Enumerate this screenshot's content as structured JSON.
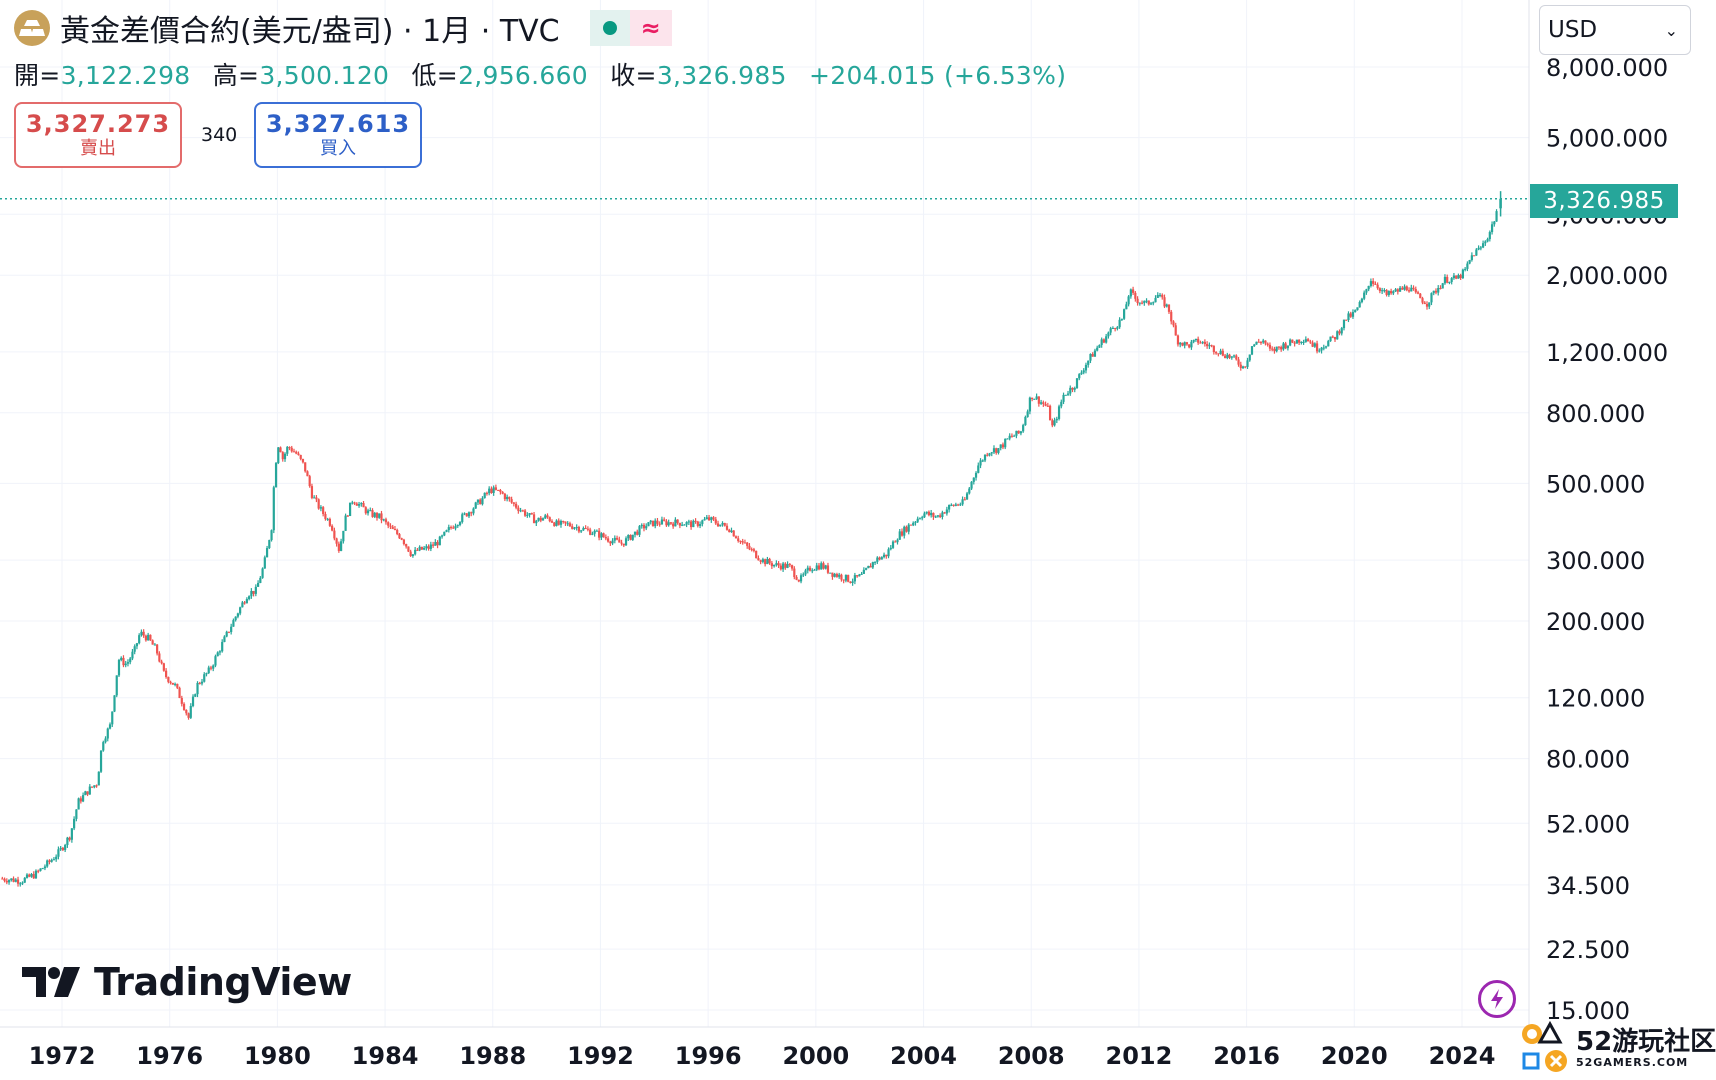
{
  "header": {
    "title": "黃金差價合約(美元/盎司) · 1月 · TVC",
    "delay_symbol": "≈"
  },
  "ohlc": {
    "open_label": "開=",
    "open": "3,122.298",
    "high_label": "高=",
    "high": "3,500.120",
    "low_label": "低=",
    "low": "2,956.660",
    "close_label": "收=",
    "close": "3,326.985",
    "change": "+204.015 (+6.53%)"
  },
  "quote": {
    "sell_price": "3,327.273",
    "sell_label": "賣出",
    "spread": "340",
    "buy_price": "3,327.613",
    "buy_label": "買入"
  },
  "currency": {
    "selected": "USD"
  },
  "last_price_label": "3,326.985",
  "branding": {
    "logo_text": "TradingView"
  },
  "watermark": {
    "title": "52游玩社区",
    "subtitle": "52GAMERS.COM"
  },
  "colors": {
    "up": "#26a69a",
    "down": "#ef5350",
    "price_line": "#26a69a",
    "accent_purple": "#9c27b0"
  },
  "icons": {
    "symbol": "gold-bars-icon",
    "status": "market-open-dot-icon",
    "delay": "delay-approx-icon",
    "bolt": "lightning-icon"
  },
  "chart_data": {
    "type": "line",
    "title": "黃金差價合約(美元/盎司)",
    "interval": "1月",
    "y_scale": "log",
    "y_ticks": [
      "8,000.000",
      "5,000.000",
      "3,000.000",
      "2,000.000",
      "1,200.000",
      "800.000",
      "500.000",
      "300.000",
      "200.000",
      "120.000",
      "80.000",
      "52.000",
      "34.500",
      "22.500",
      "15.000"
    ],
    "y_tick_values": [
      8000,
      5000,
      3000,
      2000,
      1200,
      800,
      500,
      300,
      200,
      120,
      80,
      52,
      34.5,
      22.5,
      15
    ],
    "x_ticks": [
      "1972",
      "1976",
      "1980",
      "1984",
      "1988",
      "1992",
      "1996",
      "2000",
      "2004",
      "2008",
      "2012",
      "2016",
      "2020",
      "2024"
    ],
    "x_tick_values": [
      1972,
      1976,
      1980,
      1984,
      1988,
      1992,
      1996,
      2000,
      2004,
      2008,
      2012,
      2016,
      2020,
      2024
    ],
    "ylim": [
      14,
      9000
    ],
    "xlim": [
      1969.7,
      2026.3
    ],
    "last_value": 3326.985,
    "series": [
      {
        "x": [
          1969.7,
          1970.5,
          1971.0,
          1971.5,
          1971.9,
          1972.3,
          1972.6,
          1973.0,
          1973.3,
          1973.5,
          1973.8,
          1974.1,
          1974.4,
          1974.7,
          1974.9,
          1975.2,
          1975.5,
          1975.8,
          1976.2,
          1976.5,
          1976.7,
          1977.0,
          1977.5,
          1978.0,
          1978.5,
          1978.9,
          1979.2,
          1979.5,
          1979.8,
          1979.9,
          1980.05,
          1980.2,
          1980.4,
          1980.7,
          1981.0,
          1981.3,
          1981.6,
          1982.0,
          1982.3,
          1982.5,
          1982.8,
          1983.1,
          1983.4,
          1983.8,
          1984.2,
          1984.6,
          1985.0,
          1985.2,
          1985.6,
          1986.0,
          1986.4,
          1986.8,
          1987.2,
          1987.6,
          1987.9,
          1988.3,
          1988.7,
          1989.2,
          1989.6,
          1990.0,
          1990.4,
          1990.8,
          1991.3,
          1991.8,
          1992.3,
          1992.8,
          1993.2,
          1993.6,
          1994.0,
          1994.5,
          1995.0,
          1995.5,
          1996.0,
          1996.3,
          1996.8,
          1997.2,
          1997.6,
          1998.0,
          1998.5,
          1999.0,
          1999.4,
          1999.8,
          2000.2,
          2000.6,
          2001.0,
          2001.3,
          2001.7,
          2002.2,
          2002.6,
          2003.0,
          2003.5,
          2004.0,
          2004.5,
          2005.0,
          2005.5,
          2006.0,
          2006.4,
          2006.8,
          2007.2,
          2007.6,
          2008.0,
          2008.2,
          2008.6,
          2008.8,
          2009.2,
          2009.6,
          2010.0,
          2010.5,
          2011.0,
          2011.4,
          2011.65,
          2011.9,
          2012.3,
          2012.7,
          2013.1,
          2013.4,
          2013.8,
          2014.2,
          2014.6,
          2015.0,
          2015.5,
          2015.9,
          2016.2,
          2016.6,
          2016.9,
          2017.3,
          2017.7,
          2018.2,
          2018.6,
          2018.9,
          2019.3,
          2019.7,
          2020.0,
          2020.3,
          2020.6,
          2020.9,
          2021.2,
          2021.6,
          2022.0,
          2022.3,
          2022.7,
          2023.0,
          2023.4,
          2023.8,
          2024.1,
          2024.4,
          2024.7,
          2025.0,
          2025.2,
          2025.35
        ],
        "values": [
          36,
          35.5,
          37,
          40,
          43,
          48,
          60,
          65,
          68,
          90,
          100,
          155,
          150,
          165,
          185,
          178,
          165,
          140,
          130,
          115,
          105,
          130,
          145,
          175,
          210,
          240,
          245,
          290,
          380,
          550,
          660,
          590,
          640,
          610,
          560,
          460,
          420,
          380,
          320,
          390,
          450,
          430,
          410,
          400,
          370,
          350,
          310,
          320,
          325,
          340,
          370,
          395,
          420,
          450,
          480,
          470,
          440,
          410,
          390,
          400,
          380,
          380,
          370,
          360,
          345,
          335,
          355,
          375,
          385,
          385,
          385,
          380,
          395,
          385,
          370,
          340,
          320,
          300,
          290,
          288,
          262,
          285,
          290,
          275,
          268,
          262,
          270,
          300,
          310,
          350,
          380,
          410,
          400,
          430,
          440,
          560,
          620,
          630,
          680,
          700,
          900,
          880,
          830,
          720,
          900,
          960,
          1100,
          1250,
          1400,
          1500,
          1800,
          1700,
          1650,
          1750,
          1600,
          1300,
          1250,
          1290,
          1250,
          1200,
          1150,
          1080,
          1250,
          1300,
          1200,
          1250,
          1280,
          1320,
          1230,
          1260,
          1330,
          1500,
          1550,
          1700,
          1950,
          1850,
          1750,
          1800,
          1850,
          1750,
          1660,
          1800,
          1950,
          1950,
          2050,
          2300,
          2400,
          2630,
          2900,
          3200
        ]
      }
    ]
  }
}
